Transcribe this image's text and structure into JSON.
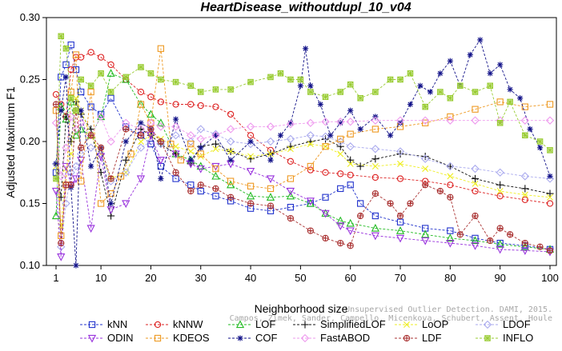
{
  "chart_data": {
    "type": "line",
    "title": "HeartDisease_withoutdupl_10_v04",
    "xlabel": "Neighborhood size",
    "ylabel": "Adjusted Maximum F1",
    "xlim": [
      1,
      100
    ],
    "ylim": [
      0.1,
      0.3
    ],
    "xticks": [
      1,
      10,
      20,
      30,
      40,
      50,
      60,
      70,
      80,
      90,
      100
    ],
    "yticks": [
      0.1,
      0.15,
      0.2,
      0.25,
      0.3
    ],
    "ytick_labels": [
      "0.10",
      "0.15",
      "0.20",
      "0.25",
      "0.30"
    ],
    "grid": false,
    "legend_position": "bottom",
    "watermark": [
      "Campos, Zimek, Sander, Campello, Micenkova, Schubert, Assent, Houle",
      "Unsupervised Outlier Detection. DAMI, 2015."
    ],
    "series": [
      {
        "name": "kNN",
        "color": "#2233cc",
        "marker": "square",
        "x": [
          1,
          2,
          3,
          4,
          5,
          6,
          8,
          10,
          12,
          15,
          18,
          20,
          22,
          25,
          28,
          30,
          33,
          36,
          40,
          44,
          48,
          52,
          55,
          58,
          60,
          62,
          65,
          70,
          75,
          80,
          85,
          90,
          95,
          100
        ],
        "y": [
          0.175,
          0.252,
          0.262,
          0.278,
          0.258,
          0.24,
          0.228,
          0.222,
          0.235,
          0.212,
          0.205,
          0.198,
          0.18,
          0.17,
          0.165,
          0.16,
          0.156,
          0.152,
          0.146,
          0.144,
          0.147,
          0.15,
          0.155,
          0.162,
          0.165,
          0.15,
          0.14,
          0.135,
          0.13,
          0.128,
          0.122,
          0.118,
          0.116,
          0.113
        ]
      },
      {
        "name": "kNNW",
        "color": "#dd2222",
        "marker": "circle",
        "x": [
          1,
          2,
          3,
          4,
          5,
          6,
          8,
          10,
          12,
          15,
          18,
          20,
          22,
          25,
          28,
          30,
          33,
          36,
          40,
          44,
          48,
          52,
          55,
          58,
          60,
          65,
          70,
          75,
          80,
          85,
          90,
          95,
          100
        ],
        "y": [
          0.238,
          0.23,
          0.22,
          0.258,
          0.268,
          0.268,
          0.272,
          0.268,
          0.262,
          0.25,
          0.24,
          0.236,
          0.232,
          0.23,
          0.23,
          0.229,
          0.228,
          0.222,
          0.205,
          0.193,
          0.184,
          0.177,
          0.175,
          0.174,
          0.173,
          0.171,
          0.17,
          0.168,
          0.165,
          0.16,
          0.156,
          0.153,
          0.15
        ]
      },
      {
        "name": "LOF",
        "color": "#22bb22",
        "marker": "triangle",
        "x": [
          1,
          2,
          3,
          4,
          5,
          6,
          8,
          10,
          12,
          15,
          18,
          20,
          22,
          25,
          28,
          30,
          33,
          36,
          40,
          44,
          48,
          52,
          55,
          58,
          60,
          65,
          70,
          75,
          80,
          85,
          90,
          95,
          100
        ],
        "y": [
          0.14,
          0.228,
          0.218,
          0.232,
          0.205,
          0.21,
          0.205,
          0.22,
          0.255,
          0.25,
          0.23,
          0.222,
          0.215,
          0.19,
          0.185,
          0.18,
          0.172,
          0.165,
          0.156,
          0.155,
          0.156,
          0.15,
          0.142,
          0.136,
          0.134,
          0.13,
          0.128,
          0.125,
          0.122,
          0.12,
          0.117,
          0.115,
          0.113
        ]
      },
      {
        "name": "SimplifiedLOF",
        "color": "#111111",
        "marker": "plus",
        "x": [
          1,
          2,
          3,
          4,
          5,
          6,
          8,
          10,
          12,
          15,
          18,
          20,
          22,
          25,
          28,
          30,
          33,
          36,
          40,
          44,
          48,
          52,
          55,
          58,
          60,
          62,
          65,
          70,
          75,
          80,
          85,
          90,
          95,
          100
        ],
        "y": [
          0.182,
          0.155,
          0.22,
          0.2,
          0.232,
          0.222,
          0.21,
          0.175,
          0.14,
          0.185,
          0.21,
          0.205,
          0.198,
          0.19,
          0.182,
          0.196,
          0.198,
          0.192,
          0.186,
          0.19,
          0.196,
          0.2,
          0.202,
          0.196,
          0.185,
          0.18,
          0.186,
          0.19,
          0.188,
          0.18,
          0.17,
          0.165,
          0.162,
          0.158
        ]
      },
      {
        "name": "LoOP",
        "color": "#eeee22",
        "marker": "x",
        "x": [
          1,
          2,
          3,
          4,
          5,
          6,
          8,
          10,
          12,
          15,
          18,
          20,
          22,
          25,
          28,
          30,
          33,
          36,
          40,
          44,
          48,
          52,
          55,
          58,
          60,
          65,
          70,
          75,
          80,
          85,
          90,
          95,
          100
        ],
        "y": [
          0.18,
          0.132,
          0.178,
          0.19,
          0.235,
          0.225,
          0.205,
          0.19,
          0.17,
          0.175,
          0.2,
          0.205,
          0.202,
          0.196,
          0.192,
          0.188,
          0.194,
          0.192,
          0.188,
          0.19,
          0.194,
          0.198,
          0.196,
          0.19,
          0.182,
          0.18,
          0.182,
          0.178,
          0.172,
          0.166,
          0.16,
          0.157,
          0.155
        ]
      },
      {
        "name": "LDOF",
        "color": "#aaaaee",
        "marker": "diamond",
        "x": [
          1,
          2,
          3,
          4,
          5,
          6,
          8,
          10,
          12,
          15,
          18,
          20,
          22,
          25,
          28,
          30,
          33,
          36,
          40,
          44,
          48,
          52,
          55,
          58,
          60,
          65,
          70,
          75,
          80,
          85,
          90,
          95,
          100
        ],
        "y": [
          0.182,
          0.115,
          0.15,
          0.175,
          0.18,
          0.19,
          0.195,
          0.19,
          0.168,
          0.175,
          0.195,
          0.2,
          0.198,
          0.205,
          0.2,
          0.21,
          0.206,
          0.2,
          0.198,
          0.2,
          0.202,
          0.205,
          0.204,
          0.2,
          0.196,
          0.194,
          0.192,
          0.186,
          0.18,
          0.178,
          0.175,
          0.172,
          0.17
        ]
      },
      {
        "name": "ODIN",
        "color": "#9933dd",
        "marker": "triangle-down",
        "x": [
          1,
          2,
          3,
          4,
          5,
          6,
          8,
          10,
          12,
          15,
          18,
          20,
          22,
          25,
          28,
          30,
          33,
          36,
          40,
          44,
          48,
          52,
          55,
          58,
          60,
          65,
          70,
          75,
          80,
          85,
          90,
          95,
          100
        ],
        "y": [
          0.16,
          0.107,
          0.18,
          0.165,
          0.17,
          0.185,
          0.13,
          0.188,
          0.145,
          0.15,
          0.17,
          0.205,
          0.185,
          0.19,
          0.182,
          0.178,
          0.18,
          0.182,
          0.176,
          0.17,
          0.16,
          0.152,
          0.142,
          0.132,
          0.128,
          0.124,
          0.122,
          0.12,
          0.118,
          0.116,
          0.113,
          0.112,
          0.111
        ]
      },
      {
        "name": "KDEOS",
        "color": "#ee9922",
        "marker": "square",
        "x": [
          1,
          2,
          3,
          4,
          5,
          6,
          8,
          10,
          12,
          14,
          16,
          18,
          20,
          22,
          24,
          26,
          28,
          30,
          33,
          36,
          40,
          44,
          48,
          52,
          55,
          58,
          60,
          65,
          70,
          75,
          80,
          85,
          90,
          95,
          100
        ],
        "y": [
          0.225,
          0.124,
          0.165,
          0.24,
          0.27,
          0.168,
          0.24,
          0.15,
          0.158,
          0.172,
          0.19,
          0.23,
          0.215,
          0.275,
          0.198,
          0.185,
          0.198,
          0.19,
          0.178,
          0.168,
          0.164,
          0.162,
          0.17,
          0.18,
          0.196,
          0.202,
          0.206,
          0.21,
          0.212,
          0.215,
          0.22,
          0.226,
          0.232,
          0.228,
          0.23
        ]
      },
      {
        "name": "COF",
        "color": "#111188",
        "marker": "asterisk",
        "x": [
          1,
          2,
          3,
          4,
          5,
          6,
          8,
          10,
          12,
          15,
          18,
          20,
          22,
          25,
          28,
          30,
          33,
          36,
          40,
          44,
          46,
          48,
          50,
          51,
          52,
          54,
          56,
          58,
          60,
          62,
          65,
          68,
          70,
          72,
          74,
          76,
          78,
          80,
          82,
          84,
          86,
          88,
          90,
          92,
          94,
          96,
          98,
          100
        ],
        "y": [
          0.182,
          0.225,
          0.252,
          0.163,
          0.1,
          0.225,
          0.18,
          0.195,
          0.15,
          0.2,
          0.215,
          0.21,
          0.17,
          0.218,
          0.185,
          0.195,
          0.205,
          0.185,
          0.2,
          0.185,
          0.205,
          0.215,
          0.245,
          0.275,
          0.245,
          0.23,
          0.205,
          0.215,
          0.225,
          0.21,
          0.22,
          0.205,
          0.215,
          0.23,
          0.245,
          0.24,
          0.255,
          0.265,
          0.245,
          0.27,
          0.282,
          0.255,
          0.262,
          0.242,
          0.235,
          0.21,
          0.195,
          0.172
        ]
      },
      {
        "name": "FastABOD",
        "color": "#ee99ee",
        "marker": "diamond",
        "x": [
          1,
          2,
          3,
          4,
          5,
          6,
          8,
          10,
          12,
          15,
          18,
          20,
          22,
          25,
          28,
          30,
          33,
          36,
          40,
          44,
          48,
          52,
          55,
          58,
          60,
          65,
          70,
          75,
          80,
          85,
          90,
          95,
          100
        ],
        "y": [
          0.215,
          0.172,
          0.195,
          0.22,
          0.21,
          0.215,
          0.205,
          0.22,
          0.2,
          0.215,
          0.21,
          0.215,
          0.212,
          0.212,
          0.205,
          0.202,
          0.205,
          0.21,
          0.212,
          0.212,
          0.214,
          0.215,
          0.216,
          0.216,
          0.216,
          0.217,
          0.217,
          0.217,
          0.217,
          0.217,
          0.217,
          0.217,
          0.217
        ]
      },
      {
        "name": "LDF",
        "color": "#aa3333",
        "marker": "circle-plus",
        "x": [
          1,
          2,
          3,
          4,
          5,
          6,
          8,
          10,
          12,
          15,
          18,
          20,
          22,
          25,
          28,
          30,
          33,
          36,
          40,
          44,
          48,
          52,
          55,
          58,
          60,
          62,
          65,
          68,
          70,
          72,
          75,
          78,
          80,
          82,
          85,
          88,
          90,
          92,
          95,
          98,
          100
        ],
        "y": [
          0.23,
          0.118,
          0.165,
          0.165,
          0.225,
          0.195,
          0.205,
          0.195,
          0.17,
          0.21,
          0.205,
          0.21,
          0.2,
          0.175,
          0.16,
          0.165,
          0.162,
          0.155,
          0.15,
          0.148,
          0.138,
          0.128,
          0.122,
          0.118,
          0.116,
          0.14,
          0.158,
          0.15,
          0.14,
          0.15,
          0.165,
          0.16,
          0.155,
          0.125,
          0.14,
          0.12,
          0.13,
          0.125,
          0.118,
          0.115,
          0.112
        ]
      },
      {
        "name": "INFLO",
        "color": "#99cc33",
        "marker": "star",
        "x": [
          1,
          2,
          3,
          4,
          5,
          6,
          8,
          10,
          12,
          15,
          18,
          20,
          22,
          25,
          28,
          30,
          33,
          36,
          40,
          44,
          46,
          48,
          50,
          52,
          55,
          58,
          60,
          62,
          65,
          68,
          70,
          72,
          75,
          78,
          80,
          82,
          85,
          88,
          90,
          92,
          95,
          98,
          100
        ],
        "y": [
          0.17,
          0.285,
          0.275,
          0.235,
          0.225,
          0.25,
          0.245,
          0.255,
          0.24,
          0.252,
          0.26,
          0.255,
          0.25,
          0.248,
          0.245,
          0.24,
          0.242,
          0.242,
          0.248,
          0.252,
          0.255,
          0.25,
          0.25,
          0.24,
          0.236,
          0.24,
          0.246,
          0.235,
          0.24,
          0.25,
          0.25,
          0.255,
          0.228,
          0.24,
          0.235,
          0.245,
          0.24,
          0.245,
          0.215,
          0.232,
          0.205,
          0.2,
          0.193
        ]
      }
    ]
  }
}
